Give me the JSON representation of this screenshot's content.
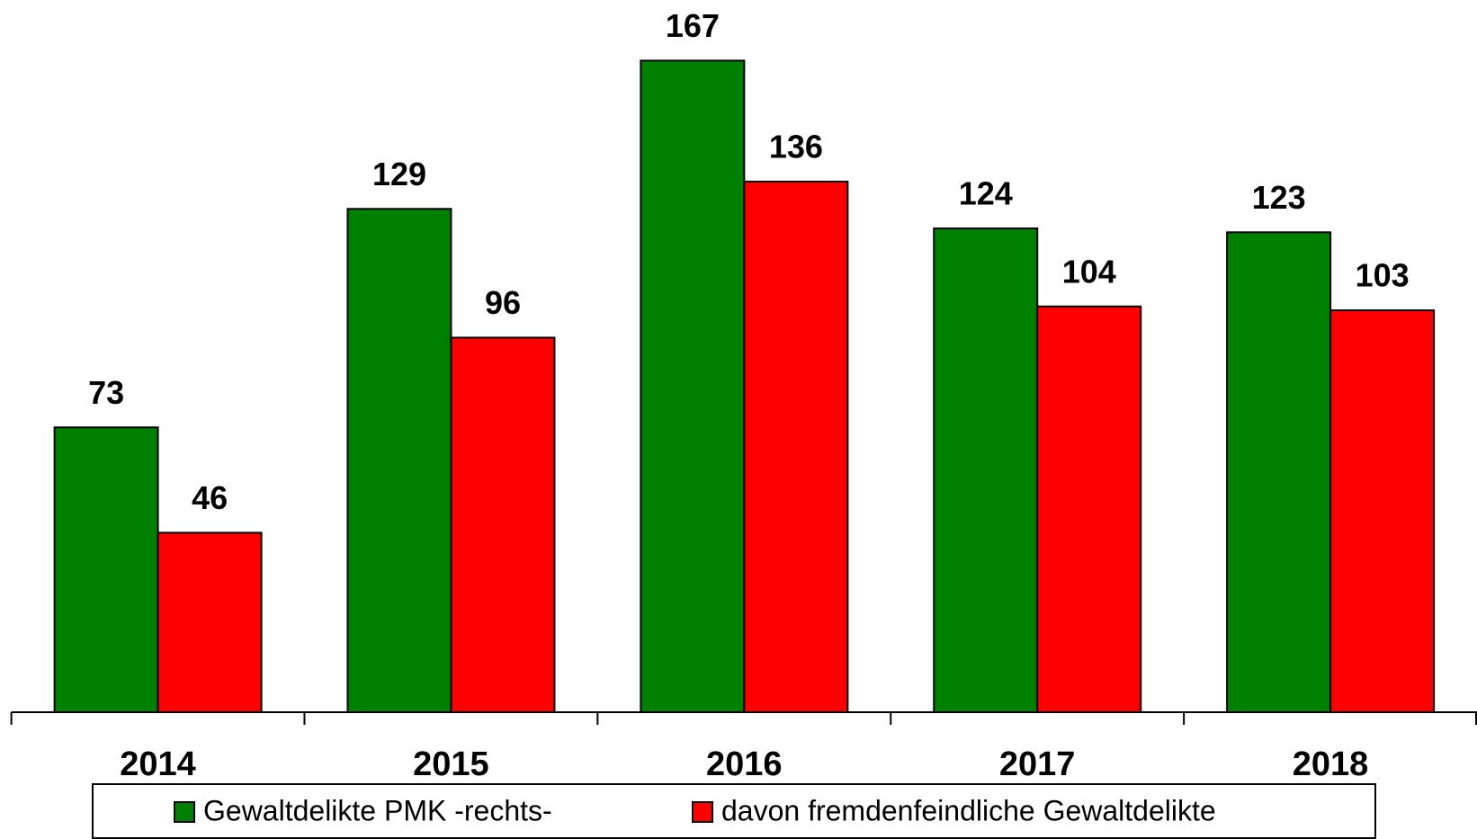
{
  "chart_data": {
    "type": "bar",
    "categories": [
      "2014",
      "2015",
      "2016",
      "2017",
      "2018"
    ],
    "series": [
      {
        "name": "Gewaltdelikte PMK -rechts-",
        "color": "#008000",
        "values": [
          73,
          129,
          167,
          124,
          123
        ]
      },
      {
        "name": "davon fremdenfeindliche Gewaltdelikte",
        "color": "#ff0000",
        "values": [
          46,
          96,
          136,
          104,
          103
        ]
      }
    ],
    "ylim": [
      0,
      180
    ]
  }
}
